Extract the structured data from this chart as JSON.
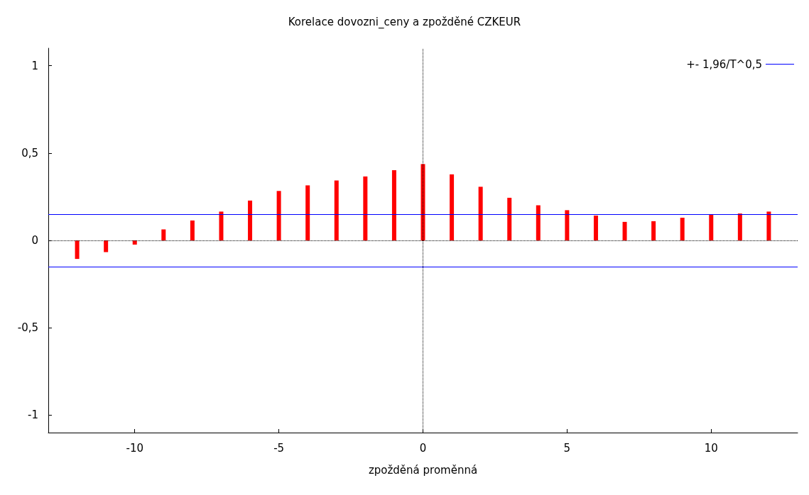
{
  "chart_data": {
    "type": "bar",
    "title": "Korelace dovozni_ceny a zpožděné CZKEUR",
    "xlabel": "zpožděná proměnná",
    "x": [
      -12,
      -11,
      -10,
      -9,
      -8,
      -7,
      -6,
      -5,
      -4,
      -3,
      -2,
      -1,
      0,
      1,
      2,
      3,
      4,
      5,
      6,
      7,
      8,
      9,
      10,
      11,
      12
    ],
    "series": [
      {
        "color": "#ff0000",
        "values": [
          -0.106,
          -0.067,
          -0.024,
          0.063,
          0.114,
          0.165,
          0.228,
          0.283,
          0.315,
          0.343,
          0.366,
          0.402,
          0.437,
          0.378,
          0.307,
          0.244,
          0.201,
          0.173,
          0.142,
          0.106,
          0.11,
          0.13,
          0.146,
          0.154,
          0.165
        ]
      }
    ],
    "xlim": [
      -13,
      13
    ],
    "xticks": [
      -10,
      -5,
      0,
      5,
      10
    ],
    "ylim": [
      -1.1,
      1.1
    ],
    "yticks": [
      {
        "value": -1,
        "label": "-1"
      },
      {
        "value": -0.5,
        "label": "-0,5"
      },
      {
        "value": 0,
        "label": "0"
      },
      {
        "value": 0.5,
        "label": "0,5"
      },
      {
        "value": 1,
        "label": "1"
      }
    ],
    "ref_lines": [
      {
        "axis": "y",
        "value": 0.155,
        "label": "+- 1,96/T^0,5",
        "color": "#0000ff",
        "line_style": "solid"
      },
      {
        "axis": "y",
        "value": -0.155,
        "color": "#0000ff",
        "line_style": "solid"
      },
      {
        "axis": "y",
        "value": 0,
        "color": "#000000",
        "line_style": "dotted"
      },
      {
        "axis": "x",
        "value": 0,
        "color": "#000000",
        "line_style": "dotted"
      }
    ],
    "legend": "top right",
    "grid": false
  }
}
